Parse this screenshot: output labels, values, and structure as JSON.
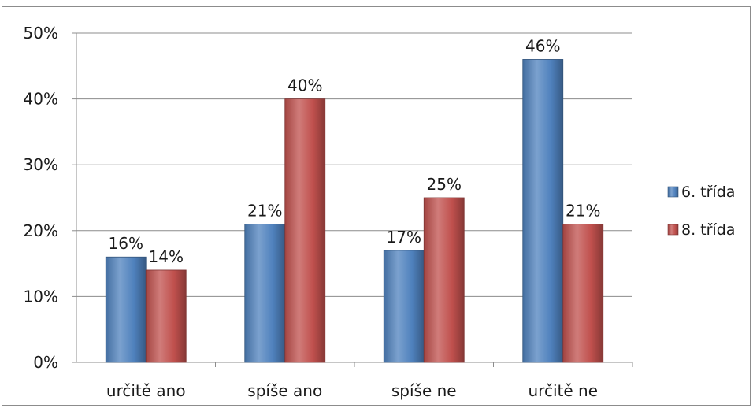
{
  "chart_data": {
    "type": "bar",
    "categories": [
      "určitě ano",
      "spíše ano",
      "spíše ne",
      "určitě ne"
    ],
    "series": [
      {
        "name": "6. třída",
        "values": [
          16,
          21,
          17,
          46
        ],
        "labels": [
          "16%",
          "21%",
          "17%",
          "46%"
        ],
        "color": "#4f81bd"
      },
      {
        "name": "8. třída",
        "values": [
          14,
          40,
          25,
          21
        ],
        "labels": [
          "14%",
          "40%",
          "25%",
          "21%"
        ],
        "color": "#c0504d"
      }
    ],
    "ylim": [
      0,
      50
    ],
    "yticks": [
      0,
      10,
      20,
      30,
      40,
      50
    ],
    "ytick_labels": [
      "0%",
      "10%",
      "20%",
      "30%",
      "40%",
      "50%"
    ],
    "grid": true,
    "legend_position": "right",
    "title": "",
    "xlabel": "",
    "ylabel": ""
  }
}
